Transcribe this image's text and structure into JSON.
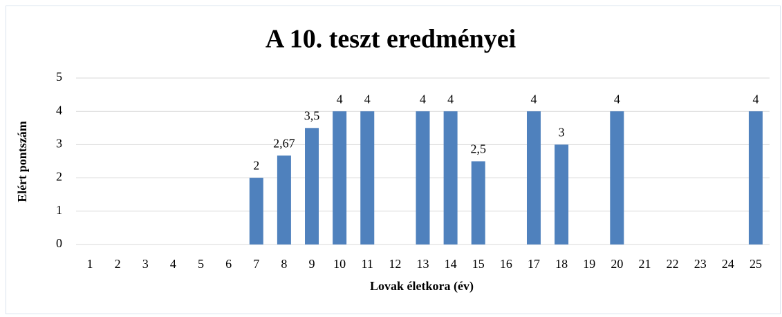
{
  "chart_data": {
    "type": "bar",
    "title": "A 10. teszt eredményei",
    "ylabel": "Elért pontszám",
    "xlabel": "Lovak életkora (év)",
    "categories": [
      "1",
      "2",
      "3",
      "4",
      "5",
      "6",
      "7",
      "8",
      "9",
      "10",
      "11",
      "12",
      "13",
      "14",
      "15",
      "16",
      "17",
      "18",
      "19",
      "20",
      "21",
      "22",
      "23",
      "24",
      "25"
    ],
    "values": [
      null,
      null,
      null,
      null,
      null,
      null,
      2,
      2.67,
      3.5,
      4,
      4,
      null,
      4,
      4,
      2.5,
      null,
      4,
      3,
      null,
      4,
      null,
      null,
      null,
      null,
      4
    ],
    "value_labels": [
      null,
      null,
      null,
      null,
      null,
      null,
      "2",
      "2,67",
      "3,5",
      "4",
      "4",
      null,
      "4",
      "4",
      "2,5",
      null,
      "4",
      "3",
      null,
      "4",
      null,
      null,
      null,
      null,
      "4"
    ],
    "color": "#4f81bd",
    "ylim": [
      0,
      5
    ],
    "yticks": [
      0,
      1,
      2,
      3,
      4,
      5
    ],
    "grid": true
  }
}
